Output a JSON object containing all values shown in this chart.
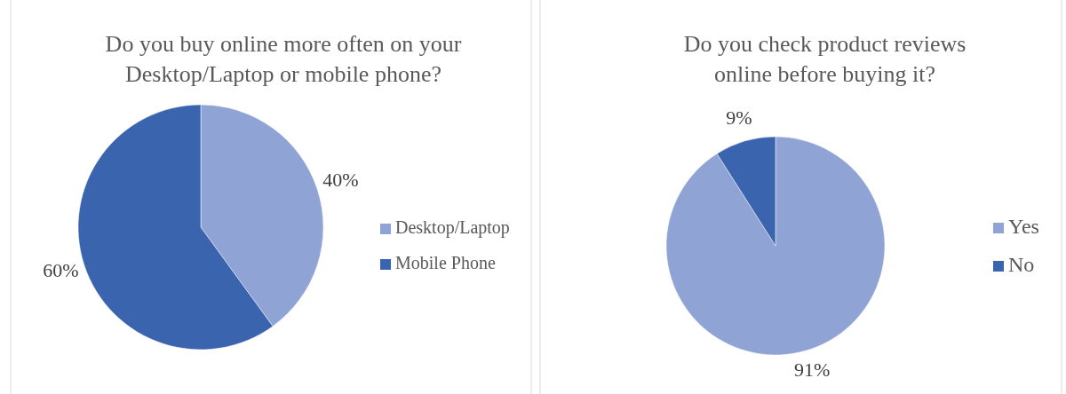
{
  "chart_data": [
    {
      "type": "pie",
      "title": "Do you buy online more often on your Desktop/Laptop or mobile phone?",
      "categories": [
        "Desktop/Laptop",
        "Mobile Phone"
      ],
      "values": [
        40,
        60
      ],
      "value_labels": [
        "40%",
        "60%"
      ],
      "colors": [
        "#8fa3d5",
        "#3b64ae"
      ],
      "legend": "right"
    },
    {
      "type": "pie",
      "title": "Do you check product reviews online before buying it?",
      "categories": [
        "Yes",
        "No"
      ],
      "values": [
        91,
        9
      ],
      "value_labels": [
        "91%",
        "9%"
      ],
      "colors": [
        "#8fa3d5",
        "#3b64ae"
      ],
      "legend": "right"
    }
  ]
}
